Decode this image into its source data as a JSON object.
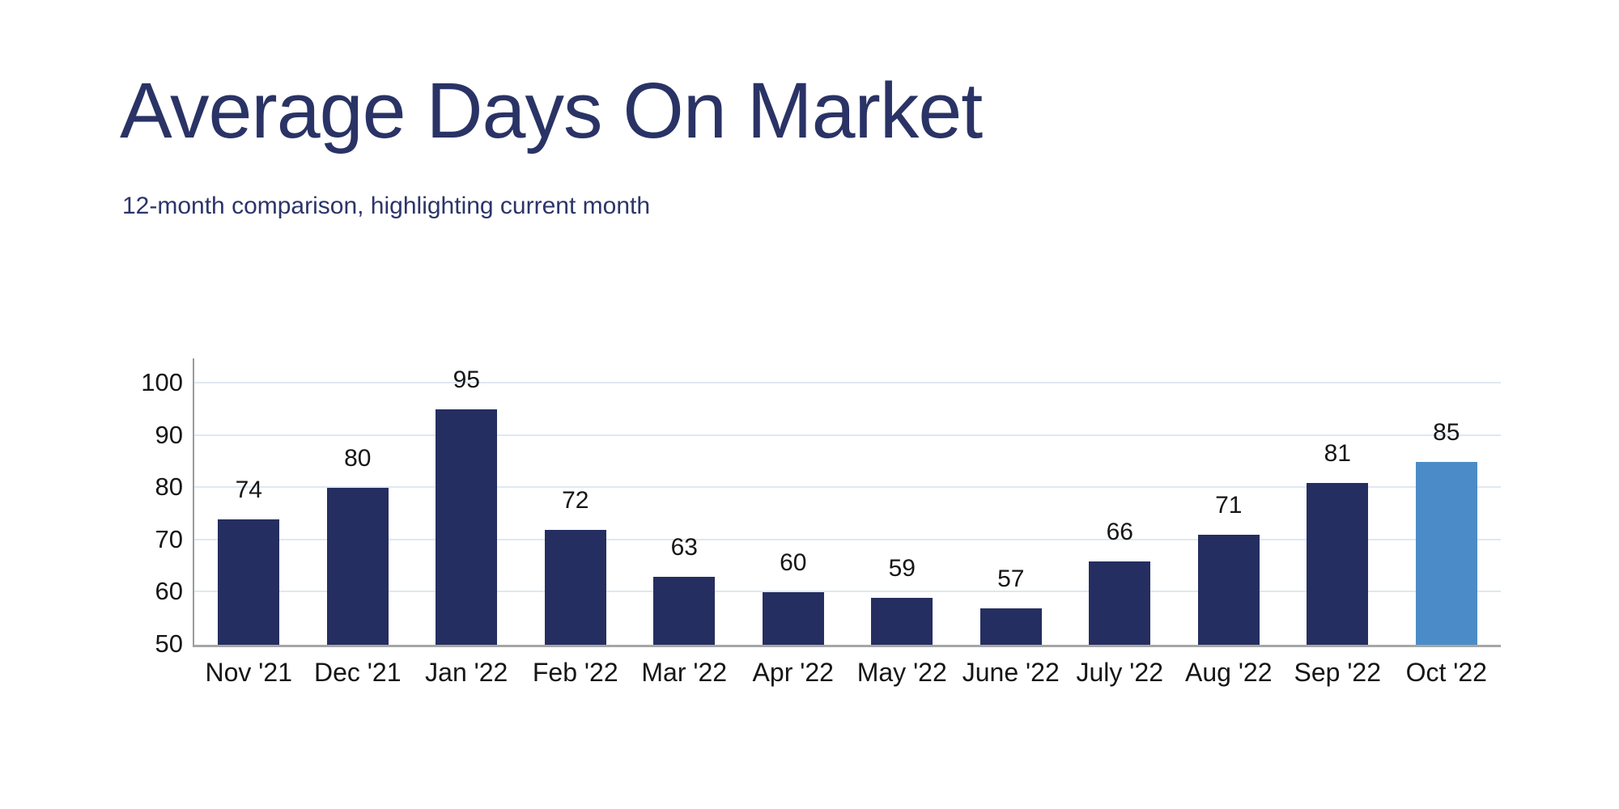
{
  "page": {
    "title": "Average Days On Market",
    "subtitle": "12-month comparison, highlighting current month"
  },
  "colors": {
    "title_text": "#2a3365",
    "subtitle_text": "#2c3568",
    "bar_default": "#252e60",
    "bar_highlight": "#4b8cc8",
    "gridline": "#dfe8f1",
    "axis_line": "#a6a6a6",
    "tick_text": "#161616"
  },
  "chart_data": {
    "type": "bar",
    "title": "Average Days On Market",
    "subtitle": "12-month comparison, highlighting current month",
    "categories": [
      "Nov '21",
      "Dec '21",
      "Jan '22",
      "Feb '22",
      "Mar '22",
      "Apr '22",
      "May '22",
      "June '22",
      "July '22",
      "Aug '22",
      "Sep '22",
      "Oct '22"
    ],
    "values": [
      74,
      80,
      95,
      72,
      63,
      60,
      59,
      57,
      66,
      71,
      81,
      85
    ],
    "highlighted_category": "Oct '22",
    "highlighted_index": 11,
    "y_ticks": [
      50,
      60,
      70,
      80,
      90,
      100
    ],
    "ylim": [
      50,
      105
    ],
    "xlabel": "",
    "ylabel": "",
    "grid": true,
    "legend_position": "none",
    "data_labels": true
  }
}
